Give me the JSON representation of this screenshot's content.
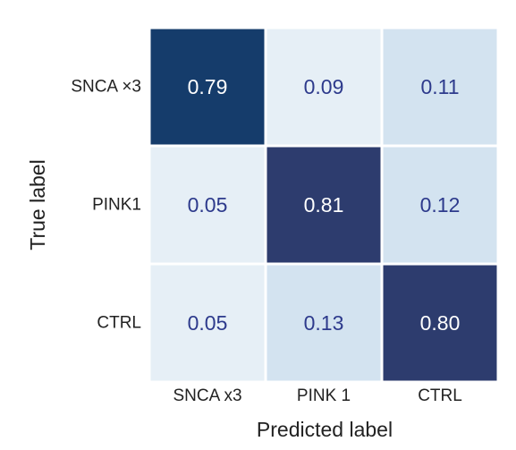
{
  "chart_data": {
    "type": "heatmap",
    "title": "",
    "xlabel": "Predicted label",
    "ylabel": "True label",
    "x_categories": [
      "SNCA x3",
      "PINK 1",
      "CTRL"
    ],
    "y_categories": [
      "SNCA ×3",
      "PINK1",
      "CTRL"
    ],
    "values": [
      [
        0.79,
        0.09,
        0.11
      ],
      [
        0.05,
        0.81,
        0.12
      ],
      [
        0.05,
        0.13,
        0.8
      ]
    ],
    "value_labels": [
      [
        "0.79",
        "0.09",
        "0.11"
      ],
      [
        "0.05",
        "0.81",
        "0.12"
      ],
      [
        "0.05",
        "0.13",
        "0.80"
      ]
    ],
    "cell_colors": [
      [
        "#153c6b",
        "#e6eff6",
        "#d3e3f0"
      ],
      [
        "#e6eff6",
        "#2d3c6e",
        "#d3e3f0"
      ],
      [
        "#e6eff6",
        "#d3e3f0",
        "#2d3c6e"
      ]
    ],
    "text_colors": {
      "dark_cell": "#ffffff",
      "light_cell": "#2d3a8c"
    },
    "grid_line_color": "#ffffff",
    "colorbar": false
  }
}
